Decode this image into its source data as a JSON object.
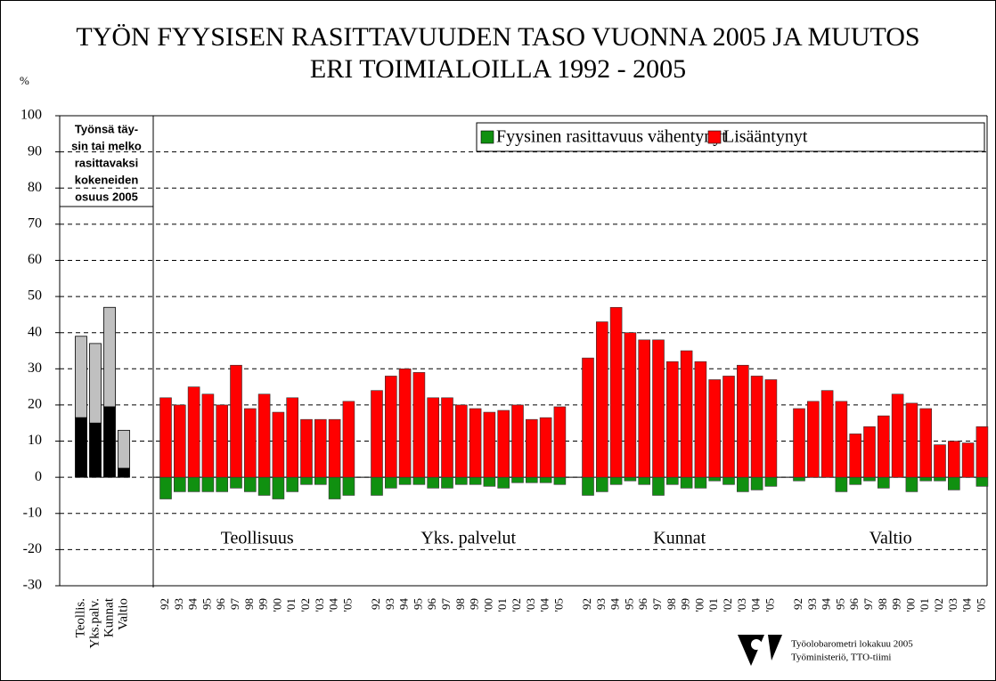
{
  "chart_data": [
    {
      "type": "stacked-bar",
      "categories": [
        "Teollis.",
        "Yks.palv.",
        "Kunnat",
        "Valtio"
      ],
      "series": [
        {
          "color": "#000000",
          "values": [
            16.5,
            15,
            19.5,
            2.5
          ]
        },
        {
          "color": "#c0c0c0",
          "values": [
            22.5,
            22,
            27.5,
            10.5
          ]
        }
      ],
      "note_lines": [
        "Työnsä täy-",
        "sin tai melko",
        "rasittavaksi",
        "kokeneiden",
        "osuus 2005"
      ],
      "y_label": "%",
      "ylim": [
        -30,
        100
      ],
      "yticks": [
        -30,
        -20,
        -10,
        0,
        10,
        20,
        30,
        40,
        50,
        60,
        70,
        80,
        90,
        100
      ]
    },
    {
      "type": "bar",
      "title": [
        "TYÖN FYYSISEN RASITTAVUUDEN TASO VUONNA 2005 JA MUUTOS",
        "ERI TOIMIALOILLA 1992 - 2005"
      ],
      "groups": [
        "Teollisuus",
        "Yks. palvelut",
        "Kunnat",
        "Valtio"
      ],
      "categories": [
        "92",
        "93",
        "94",
        "95",
        "96",
        "97",
        "98",
        "99",
        "'00",
        "'01",
        "'02",
        "'03",
        "'04",
        "'05",
        "92",
        "93",
        "94",
        "95",
        "96",
        "97",
        "98",
        "99",
        "'00",
        "'01",
        "'02",
        "'03",
        "'04",
        "'05",
        "92",
        "93",
        "94",
        "95",
        "96",
        "97",
        "98",
        "99",
        "'00",
        "'01",
        "'02",
        "'03",
        "'04",
        "'05",
        "92",
        "93",
        "94",
        "95",
        "96",
        "97",
        "98",
        "99",
        "'00",
        "'01",
        "'02",
        "'03",
        "'04",
        "'05"
      ],
      "series": [
        {
          "name": "Fyysinen rasittavuus vähentynyt",
          "color": "#109010",
          "values": [
            -6,
            -4,
            -4,
            -4,
            -4,
            -3,
            -4,
            -5,
            -6,
            -4,
            -2,
            -2,
            -6,
            -5,
            -5,
            -3,
            -2,
            -2,
            -3,
            -3,
            -2,
            -2,
            -2.5,
            -3,
            -1.5,
            -1.5,
            -1.5,
            -2,
            -5,
            -4,
            -2,
            -1,
            -2,
            -5,
            -2,
            -3,
            -3,
            -1,
            -2,
            -4,
            -3.5,
            -2.5,
            -1,
            0,
            0,
            -4,
            -2,
            -1,
            -3,
            0,
            -4,
            -1,
            -1,
            -3.5,
            0,
            -2.5
          ]
        },
        {
          "name": "Lisääntynyt",
          "color": "#ff0000",
          "values": [
            22,
            20,
            25,
            23,
            20,
            31,
            19,
            23,
            18,
            22,
            16,
            16,
            16,
            21,
            24,
            28,
            30,
            29,
            22,
            22,
            20,
            19,
            18,
            18.5,
            20,
            16,
            16.5,
            19.5,
            33,
            43,
            47,
            40,
            38,
            38,
            32,
            35,
            32,
            27,
            28,
            31,
            28,
            27,
            19,
            21,
            24,
            21,
            12,
            14,
            17,
            23,
            20.5,
            19,
            9,
            10,
            9.5,
            14
          ]
        }
      ],
      "ylim": [
        -30,
        100
      ],
      "yticks": [
        -30,
        -20,
        -10,
        0,
        10,
        20,
        30,
        40,
        50,
        60,
        70,
        80,
        90,
        100
      ],
      "grid": true,
      "legend": "top-right",
      "source": [
        "Työolobarometri lokakuu 2005",
        "Työministeriö, TTO-tiimi"
      ]
    }
  ]
}
